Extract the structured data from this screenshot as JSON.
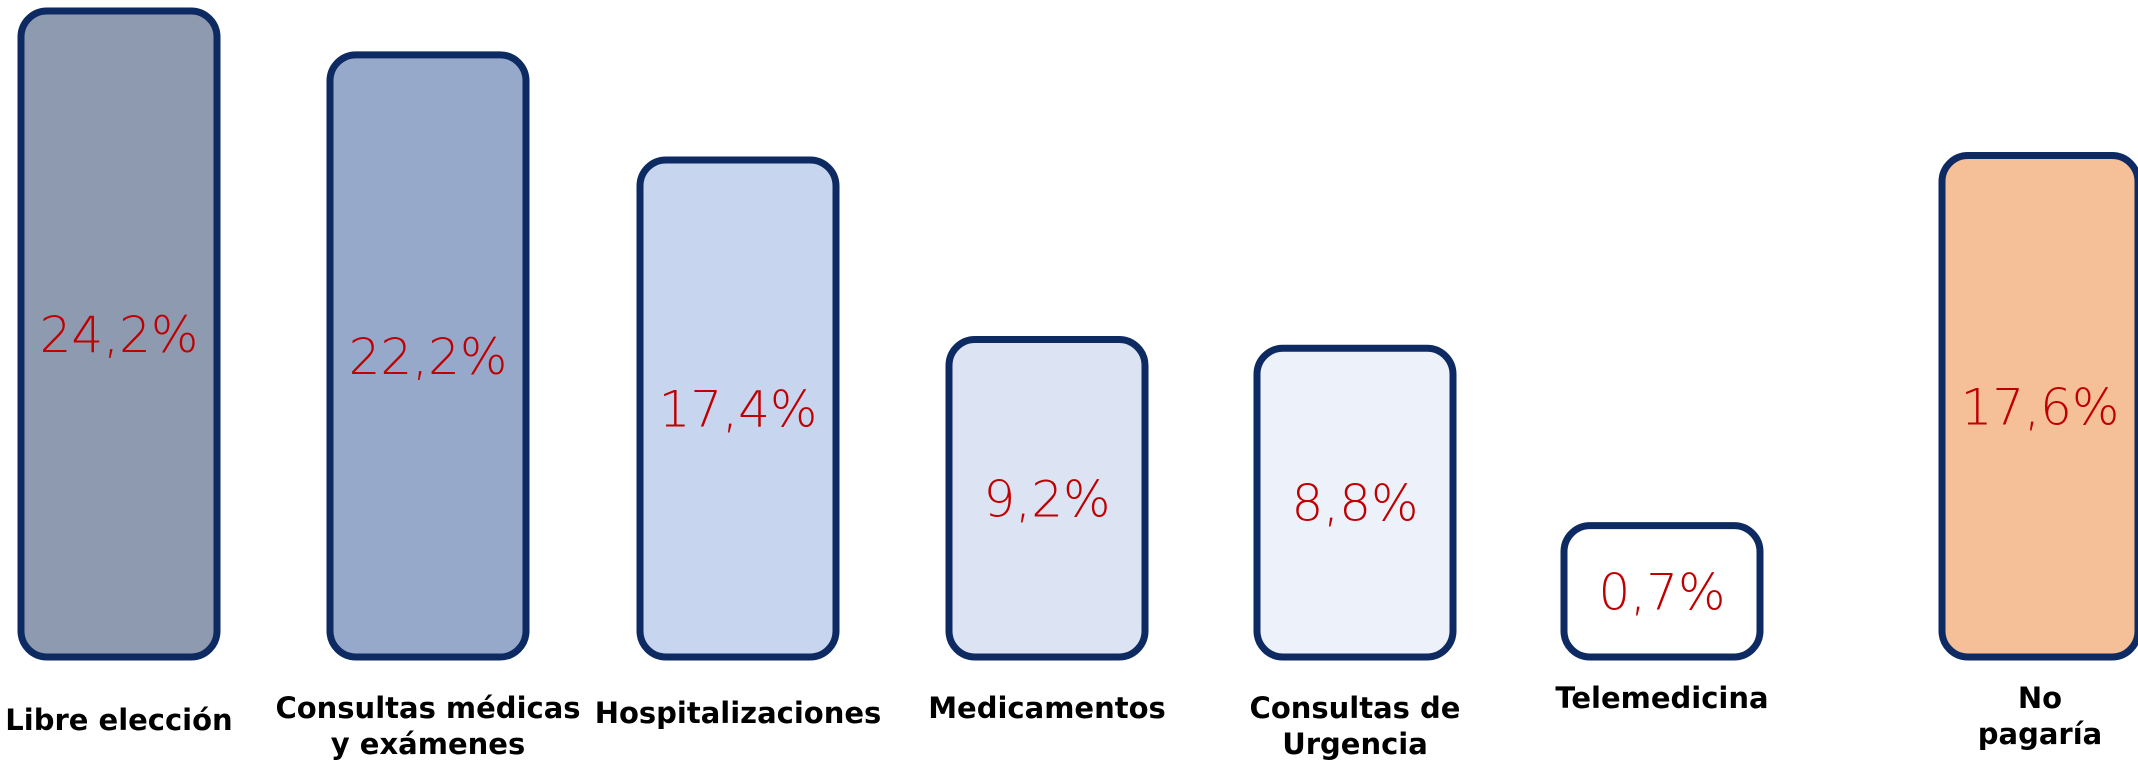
{
  "chart_data": {
    "type": "bar",
    "categories": [
      "Libre elección",
      "Consultas médicas\ny exámenes",
      "Hospitalizaciones",
      "Medicamentos",
      "Consultas de\nUrgencia",
      "Telemedicina",
      "No\npagaría"
    ],
    "values": [
      24.2,
      22.2,
      17.4,
      9.2,
      8.8,
      0.7,
      17.6
    ],
    "value_labels": [
      "24,2%",
      "22,2%",
      "17,4%",
      "9,2%",
      "8,8%",
      "0,7%",
      "17,6%"
    ],
    "colors": [
      "#8e9ab0",
      "#97a9ca",
      "#c8d5ee",
      "#dce4f4",
      "#edf1fa",
      "#ffffff",
      "#f5bf98"
    ],
    "border_color": "#0e2a63",
    "label_color": "#c00000"
  }
}
